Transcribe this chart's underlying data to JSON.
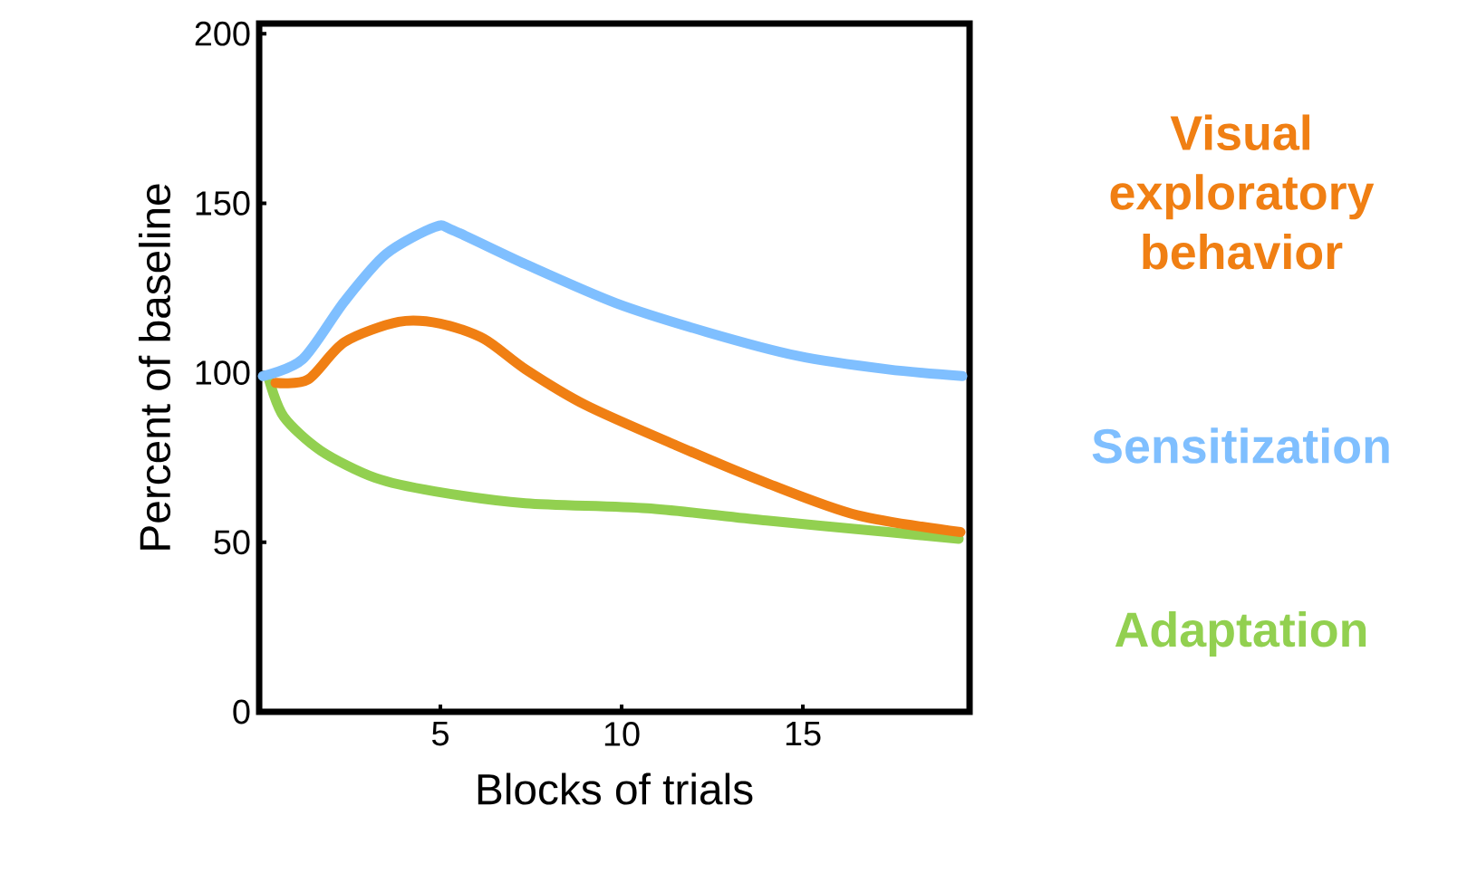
{
  "chart_data": {
    "type": "line",
    "xlabel": "Blocks of trials",
    "ylabel": "Percent of baseline",
    "xlim": [
      0,
      19.6
    ],
    "ylim": [
      0,
      203
    ],
    "xticks": [
      5,
      10,
      15
    ],
    "yticks": [
      0,
      50,
      100,
      150,
      200
    ],
    "grid": false,
    "legend": false,
    "marker": "none",
    "line_style": "solid",
    "series": [
      {
        "name": "Visual exploratory behavior",
        "color": "#f07f13",
        "x": [
          0.45,
          1.35,
          2.35,
          3.85,
          5,
          6.2,
          7.35,
          9,
          11.5,
          14,
          16.5,
          19.35
        ],
        "values": [
          97,
          98,
          109,
          115,
          114.5,
          110,
          101,
          90.5,
          78.6,
          67.5,
          58,
          53
        ]
      },
      {
        "name": "Sensitization",
        "color": "#7fbfff",
        "x": [
          0.1,
          1.2,
          2.35,
          3.5,
          4.85,
          5.35,
          7.35,
          9.85,
          12.35,
          14.85,
          17.35,
          19.4
        ],
        "values": [
          99,
          104,
          121,
          135,
          143,
          142,
          132,
          120.5,
          112,
          105,
          101,
          99
        ]
      },
      {
        "name": "Adaptation",
        "color": "#92d050",
        "x": [
          0.27,
          0.68,
          1.7,
          3.2,
          4.85,
          7.35,
          10.7,
          14,
          17.35,
          19.3
        ],
        "values": [
          98,
          87,
          77,
          69,
          65,
          61.5,
          60,
          56.4,
          53,
          51
        ]
      }
    ]
  }
}
